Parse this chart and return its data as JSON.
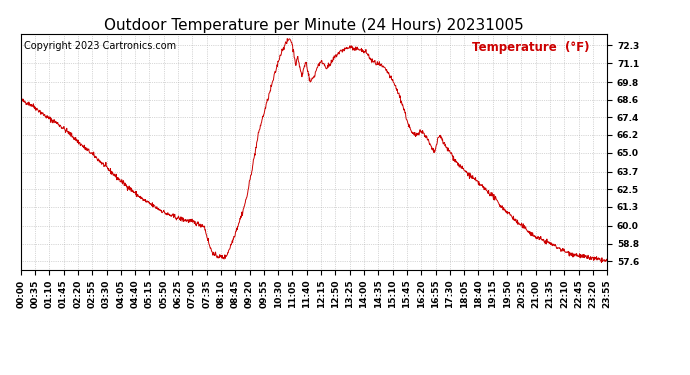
{
  "title": "Outdoor Temperature per Minute (24 Hours) 20231005",
  "copyright_text": "Copyright 2023 Cartronics.com",
  "legend_label": "Temperature  (°F)",
  "line_color": "#cc0000",
  "background_color": "#ffffff",
  "plot_bg_color": "#ffffff",
  "grid_color": "#aaaaaa",
  "yticks": [
    57.6,
    58.8,
    60.0,
    61.3,
    62.5,
    63.7,
    65.0,
    66.2,
    67.4,
    68.6,
    69.8,
    71.1,
    72.3
  ],
  "ylim": [
    57.0,
    73.1
  ],
  "xtick_labels": [
    "00:00",
    "00:35",
    "01:10",
    "01:45",
    "02:20",
    "02:55",
    "03:30",
    "04:05",
    "04:40",
    "05:15",
    "05:50",
    "06:25",
    "07:00",
    "07:35",
    "08:10",
    "08:45",
    "09:20",
    "09:55",
    "10:30",
    "11:05",
    "11:40",
    "12:15",
    "12:50",
    "13:25",
    "14:00",
    "14:35",
    "15:10",
    "15:45",
    "16:20",
    "16:55",
    "17:30",
    "18:05",
    "18:40",
    "19:15",
    "19:50",
    "20:25",
    "21:00",
    "21:35",
    "22:10",
    "22:45",
    "23:20",
    "23:55"
  ],
  "title_fontsize": 11,
  "copyright_fontsize": 7,
  "legend_fontsize": 8.5,
  "tick_fontsize": 6.5,
  "waypoints": [
    [
      0,
      68.6
    ],
    [
      30,
      68.2
    ],
    [
      60,
      67.5
    ],
    [
      90,
      67.0
    ],
    [
      120,
      66.3
    ],
    [
      150,
      65.5
    ],
    [
      180,
      64.8
    ],
    [
      210,
      64.0
    ],
    [
      240,
      63.2
    ],
    [
      270,
      62.5
    ],
    [
      300,
      61.8
    ],
    [
      330,
      61.3
    ],
    [
      360,
      60.8
    ],
    [
      390,
      60.5
    ],
    [
      420,
      60.3
    ],
    [
      450,
      60.0
    ],
    [
      455,
      59.5
    ],
    [
      460,
      59.0
    ],
    [
      465,
      58.5
    ],
    [
      475,
      58.0
    ],
    [
      490,
      57.9
    ],
    [
      500,
      57.85
    ],
    [
      505,
      58.0
    ],
    [
      510,
      58.3
    ],
    [
      520,
      59.0
    ],
    [
      535,
      60.2
    ],
    [
      545,
      61.0
    ],
    [
      555,
      62.0
    ],
    [
      565,
      63.5
    ],
    [
      575,
      65.0
    ],
    [
      585,
      66.5
    ],
    [
      595,
      67.5
    ],
    [
      605,
      68.5
    ],
    [
      615,
      69.5
    ],
    [
      625,
      70.5
    ],
    [
      635,
      71.5
    ],
    [
      645,
      72.2
    ],
    [
      655,
      72.6
    ],
    [
      660,
      72.8
    ],
    [
      665,
      72.5
    ],
    [
      670,
      71.8
    ],
    [
      675,
      71.0
    ],
    [
      680,
      71.5
    ],
    [
      685,
      70.8
    ],
    [
      690,
      70.2
    ],
    [
      695,
      70.8
    ],
    [
      700,
      71.2
    ],
    [
      705,
      70.5
    ],
    [
      710,
      69.8
    ],
    [
      720,
      70.2
    ],
    [
      730,
      71.0
    ],
    [
      740,
      71.2
    ],
    [
      750,
      70.8
    ],
    [
      760,
      71.0
    ],
    [
      770,
      71.5
    ],
    [
      780,
      71.8
    ],
    [
      790,
      72.0
    ],
    [
      800,
      72.1
    ],
    [
      810,
      72.2
    ],
    [
      820,
      72.0
    ],
    [
      830,
      72.1
    ],
    [
      840,
      71.9
    ],
    [
      850,
      71.8
    ],
    [
      855,
      71.5
    ],
    [
      860,
      71.3
    ],
    [
      870,
      71.1
    ],
    [
      880,
      71.0
    ],
    [
      890,
      70.8
    ],
    [
      900,
      70.5
    ],
    [
      910,
      70.0
    ],
    [
      920,
      69.5
    ],
    [
      930,
      68.8
    ],
    [
      940,
      68.0
    ],
    [
      950,
      67.0
    ],
    [
      960,
      66.3
    ],
    [
      970,
      66.2
    ],
    [
      980,
      66.5
    ],
    [
      990,
      66.3
    ],
    [
      1000,
      65.8
    ],
    [
      1010,
      65.2
    ],
    [
      1015,
      65.0
    ],
    [
      1020,
      65.5
    ],
    [
      1025,
      66.0
    ],
    [
      1030,
      66.2
    ],
    [
      1035,
      65.8
    ],
    [
      1045,
      65.3
    ],
    [
      1055,
      65.0
    ],
    [
      1065,
      64.5
    ],
    [
      1080,
      64.0
    ],
    [
      1100,
      63.5
    ],
    [
      1120,
      63.0
    ],
    [
      1140,
      62.5
    ],
    [
      1160,
      62.0
    ],
    [
      1180,
      61.3
    ],
    [
      1200,
      60.8
    ],
    [
      1220,
      60.2
    ],
    [
      1240,
      59.8
    ],
    [
      1260,
      59.3
    ],
    [
      1300,
      58.8
    ],
    [
      1340,
      58.2
    ],
    [
      1380,
      57.9
    ],
    [
      1420,
      57.7
    ],
    [
      1439,
      57.6
    ]
  ]
}
